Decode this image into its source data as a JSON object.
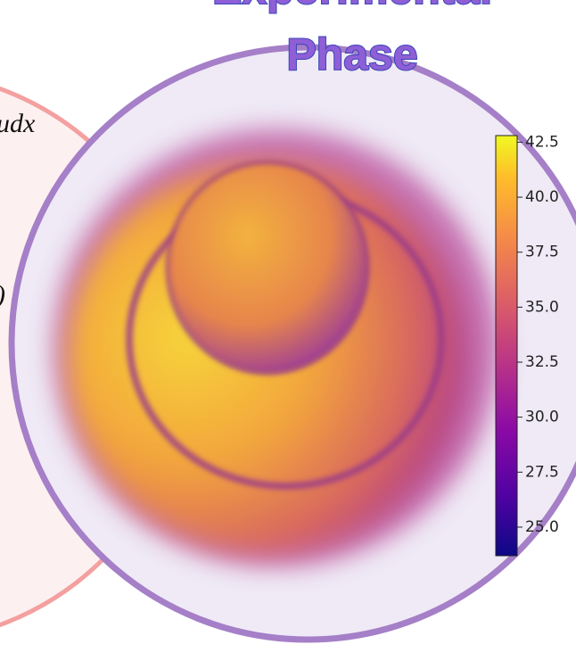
{
  "title_lines": [
    "Experimental",
    "Phase"
  ],
  "left_text": [
    "udx",
    ")"
  ],
  "colorbar": {
    "lim": [
      23.7,
      42.8
    ],
    "ticks": [
      {
        "value": 25,
        "label": "25.0"
      },
      {
        "value": 27.5,
        "label": "27.5"
      },
      {
        "value": 30,
        "label": "30.0"
      },
      {
        "value": 32.5,
        "label": "32.5"
      },
      {
        "value": 35,
        "label": "35.0"
      },
      {
        "value": 37.5,
        "label": "37.5"
      },
      {
        "value": 40,
        "label": "40.0"
      },
      {
        "value": 42.5,
        "label": "42.5"
      }
    ]
  }
}
